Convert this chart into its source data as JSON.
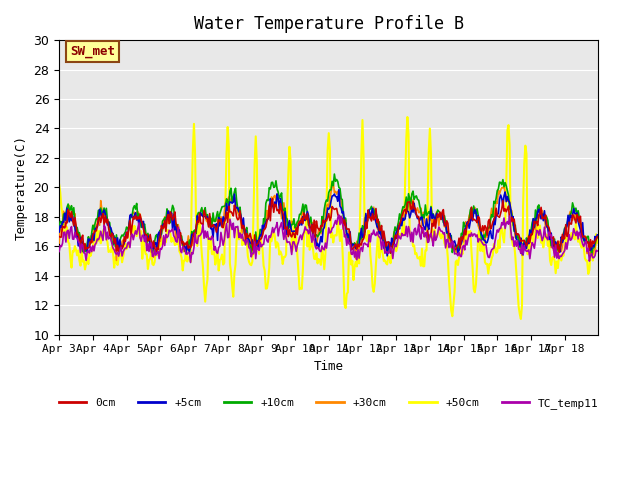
{
  "title": "Water Temperature Profile B",
  "xlabel": "Time",
  "ylabel": "Temperature(C)",
  "ylim": [
    10,
    30
  ],
  "yticks": [
    10,
    12,
    14,
    16,
    18,
    20,
    22,
    24,
    26,
    28,
    30
  ],
  "xlim": [
    0,
    480
  ],
  "x_tick_labels": [
    "Apr 3",
    "Apr 4",
    "Apr 5",
    "Apr 6",
    "Apr 7",
    "Apr 8",
    "Apr 9",
    "Apr 10",
    "Apr 11",
    "Apr 12",
    "Apr 13",
    "Apr 14",
    "Apr 15",
    "Apr 16",
    "Apr 17",
    "Apr 18"
  ],
  "x_tick_positions": [
    0,
    30,
    60,
    90,
    120,
    150,
    180,
    210,
    240,
    270,
    300,
    330,
    360,
    390,
    420,
    450
  ],
  "bg_color": "#e8e8e8",
  "plot_bg_color": "#e8e8e8",
  "annotation_text": "SW_met",
  "annotation_color": "#8b0000",
  "annotation_bg": "#ffff99",
  "annotation_border": "#8b4513",
  "series_colors": {
    "0cm": "#cc0000",
    "+5cm": "#0000cc",
    "+10cm": "#00aa00",
    "+30cm": "#ff8800",
    "+50cm": "#ffff00",
    "TC_temp11": "#aa00aa"
  },
  "series_linewidths": {
    "0cm": 1.2,
    "+5cm": 1.2,
    "+10cm": 1.2,
    "+30cm": 1.2,
    "+50cm": 1.5,
    "TC_temp11": 1.2
  },
  "legend_loc": "lower center",
  "legend_ncol": 6,
  "font_family": "monospace"
}
